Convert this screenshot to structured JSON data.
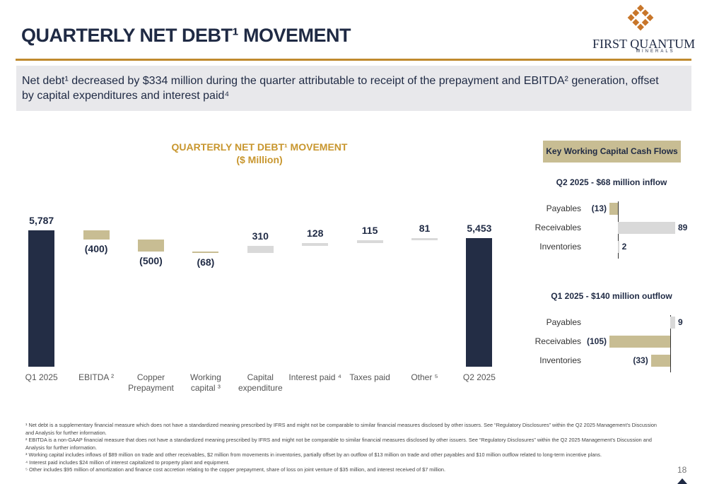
{
  "header": {
    "title": "QUARTERLY NET DEBT¹ MOVEMENT",
    "logo_name": "FIRST QUANTUM",
    "logo_sub": "MINERALS",
    "summary": "Net debt¹ decreased by $334 million during the quarter attributable to receipt of the prepayment and EBITDA² generation, offset by capital expenditures and interest paid⁴"
  },
  "panel_title": "Key Working Capital Cash Flows",
  "chart_data": [
    {
      "type": "waterfall",
      "title": "QUARTERLY NET DEBT¹ MOVEMENT",
      "subtitle": "($ Million)",
      "categories": [
        "Q1 2025",
        "EBITDA ²",
        "Copper Prepayment",
        "Working capital ³",
        "Capital expenditure",
        "Interest paid ⁴",
        "Taxes paid",
        "Other ⁵",
        "Q2 2025"
      ],
      "values": [
        5787,
        -400,
        -500,
        -68,
        310,
        128,
        115,
        81,
        5453
      ],
      "value_labels": [
        "5,787",
        "(400)",
        "(500)",
        "(68)",
        "310",
        "128",
        "115",
        "81",
        "5,453"
      ],
      "colors": {
        "total": "#232d45",
        "decrease": "#c8bd93",
        "increase": "#d9d9d9"
      }
    },
    {
      "type": "bar",
      "orientation": "horizontal",
      "title": "Q2 2025 - $68 million inflow",
      "categories": [
        "Payables",
        "Receivables",
        "Inventories"
      ],
      "values": [
        -13,
        89,
        2
      ],
      "value_labels": [
        "(13)",
        "89",
        "2"
      ],
      "colors": {
        "negative": "#c8bd93",
        "positive": "#d9d9d9"
      }
    },
    {
      "type": "bar",
      "orientation": "horizontal",
      "title": "Q1 2025 - $140 million outflow",
      "categories": [
        "Payables",
        "Receivables",
        "Inventories"
      ],
      "values": [
        9,
        -105,
        -33
      ],
      "value_labels": [
        "9",
        "(105)",
        "(33)"
      ],
      "colors": {
        "negative": "#c8bd93",
        "positive": "#d9d9d9"
      }
    }
  ],
  "footnotes": [
    "¹ Net debt is a supplementary financial measure which does not have a standardized meaning prescribed by IFRS and might not be comparable to similar financial measures disclosed by other issuers. See “Regulatory Disclosures” within the Q2 2025 Management’s Discussion and Analysis for further information.",
    "² EBITDA is a non-GAAP financial measure that does not have a standardized meaning prescribed by IFRS and might not be comparable to similar financial measures disclosed by other issuers. See “Regulatory Disclosures” within the Q2 2025 Management’s Discussion and Analysis for further information.",
    "³ Working capital includes inflows of $89 million on trade and other receivables, $2 million from movements in inventories, partially offset by an outflow of $13 million on trade and other payables and $10 million outflow related to long-term incentive plans.",
    "⁴ Interest paid includes $24 million of interest capitalized to property plant and equipment.",
    "⁵ Other includes $95 million of amortization and finance cost accretion relating to the copper prepayment, share of loss on joint venture of $35 million, and interest received of $7 million."
  ],
  "page_number": "18"
}
